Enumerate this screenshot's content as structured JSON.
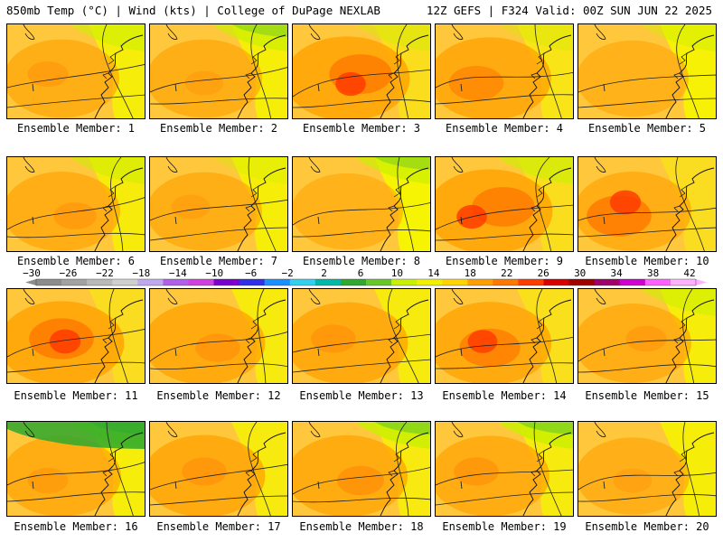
{
  "header": {
    "left_title": "850mb Temp (°C) | Wind (kts) | College of DuPage NEXLAB",
    "right_title": "12Z GEFS | F324 Valid: 00Z SUN JUN 22 2025"
  },
  "panels": [
    {
      "label": "Ensemble Member: 1",
      "hue": 0.45,
      "hot": 0.3,
      "green": 0.35
    },
    {
      "label": "Ensemble Member: 2",
      "hue": 0.45,
      "hot": 0.25,
      "green": 0.45
    },
    {
      "label": "Ensemble Member: 3",
      "hue": 0.72,
      "hot": 0.85,
      "green": 0.2
    },
    {
      "label": "Ensemble Member: 4",
      "hue": 0.65,
      "hot": 0.65,
      "green": 0.1
    },
    {
      "label": "Ensemble Member: 5",
      "hue": 0.35,
      "hot": 0.15,
      "green": 0.2
    },
    {
      "label": "Ensemble Member: 6",
      "hue": 0.5,
      "hot": 0.35,
      "green": 0.3
    },
    {
      "label": "Ensemble Member: 7",
      "hue": 0.45,
      "hot": 0.25,
      "green": 0.1
    },
    {
      "label": "Ensemble Member: 8",
      "hue": 0.35,
      "hot": 0.1,
      "green": 0.45
    },
    {
      "label": "Ensemble Member: 9",
      "hue": 0.72,
      "hot": 0.85,
      "green": 0.4
    },
    {
      "label": "Ensemble Member: 10",
      "hue": 0.5,
      "hot": 0.9,
      "green": 0.05
    },
    {
      "label": "Ensemble Member: 11",
      "hue": 0.72,
      "hot": 0.9,
      "green": 0.0
    },
    {
      "label": "Ensemble Member: 12",
      "hue": 0.62,
      "hot": 0.4,
      "green": 0.0
    },
    {
      "label": "Ensemble Member: 13",
      "hue": 0.62,
      "hot": 0.4,
      "green": 0.0
    },
    {
      "label": "Ensemble Member: 14",
      "hue": 0.66,
      "hot": 0.8,
      "green": 0.0
    },
    {
      "label": "Ensemble Member: 15",
      "hue": 0.5,
      "hot": 0.3,
      "green": 0.35
    },
    {
      "label": "Ensemble Member: 16",
      "hue": 0.55,
      "hot": 0.3,
      "green": 0.9
    },
    {
      "label": "Ensemble Member: 17",
      "hue": 0.62,
      "hot": 0.4,
      "green": 0.0
    },
    {
      "label": "Ensemble Member: 18",
      "hue": 0.6,
      "hot": 0.45,
      "green": 0.6
    },
    {
      "label": "Ensemble Member: 19",
      "hue": 0.55,
      "hot": 0.4,
      "green": 0.6
    },
    {
      "label": "Ensemble Member: 20",
      "hue": 0.4,
      "hot": 0.25,
      "green": 0.0
    }
  ],
  "colorbar": {
    "tick_labels": [
      "−30",
      "−26",
      "−22",
      "−18",
      "−14",
      "−10",
      "−6",
      "−2",
      "2",
      "6",
      "10",
      "14",
      "18",
      "22",
      "26",
      "30",
      "34",
      "38",
      "42"
    ],
    "colors": [
      "#8c8c8c",
      "#a2a2a2",
      "#b9b9b9",
      "#cfcfcf",
      "#c0a8f0",
      "#b060e8",
      "#d040e0",
      "#7a00d0",
      "#3030e8",
      "#1a90ff",
      "#30d0f0",
      "#00b8a8",
      "#2ea82e",
      "#66c828",
      "#c8f000",
      "#f0f000",
      "#ffd400",
      "#ffa000",
      "#ff7800",
      "#ff3c00",
      "#d80000",
      "#a00000",
      "#a0006a",
      "#d000d0",
      "#ff60ff",
      "#ffb0ff"
    ]
  }
}
